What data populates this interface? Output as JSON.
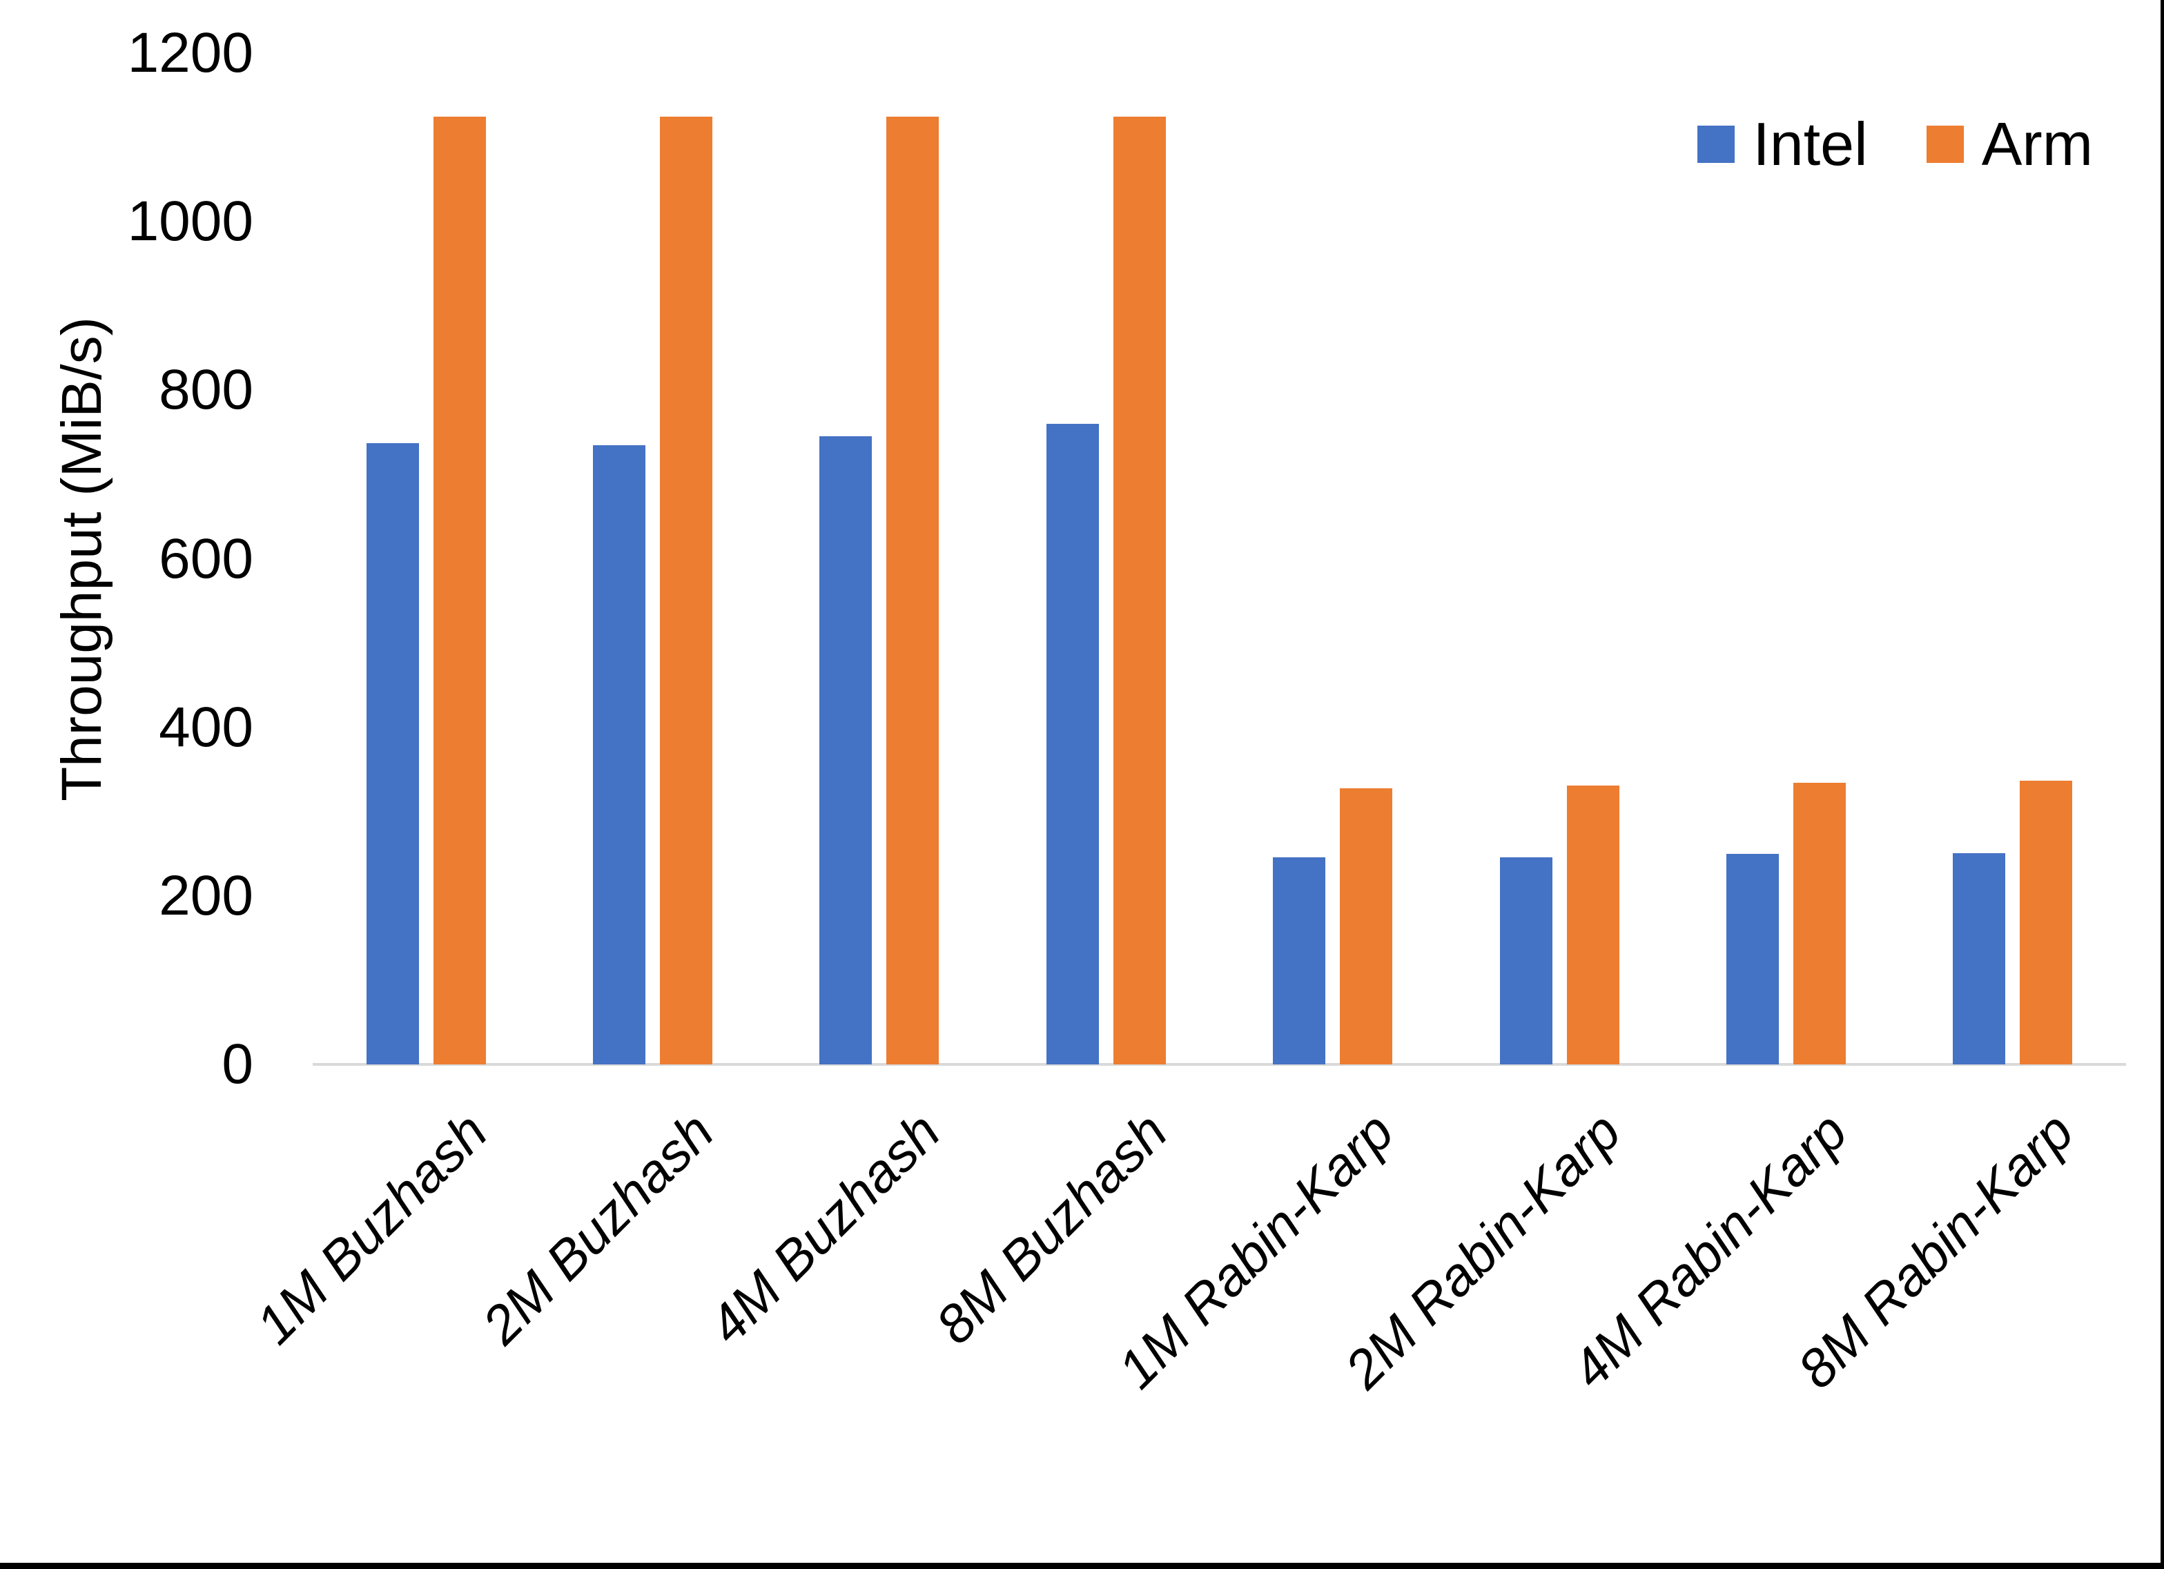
{
  "chart_data": {
    "type": "bar",
    "title": "",
    "xlabel": "",
    "ylabel": "Throughput (MiB/s)",
    "ylim": [
      0,
      1200
    ],
    "yticks": [
      0,
      200,
      400,
      600,
      800,
      1000,
      1200
    ],
    "grid": false,
    "legend_position": "top-right",
    "categories": [
      "1M Buzhash",
      "2M Buzhash",
      "4M Buzhash",
      "8M Buzhash",
      "1M Rabin-Karp",
      "2M Rabin-Karp",
      "4M Rabin-Karp",
      "8M Rabin-Karp"
    ],
    "series": [
      {
        "name": "Intel",
        "color": "#4472C4",
        "values": [
          737,
          735,
          745,
          760,
          246,
          246,
          250,
          251
        ]
      },
      {
        "name": "Arm",
        "color": "#ED7D31",
        "values": [
          1125,
          1125,
          1125,
          1125,
          328,
          331,
          334,
          337
        ]
      }
    ]
  },
  "colors": {
    "background": "#FFFFFF",
    "axis_line": "#D9D9D9",
    "text": "#000000",
    "frame_border": "#000000"
  }
}
